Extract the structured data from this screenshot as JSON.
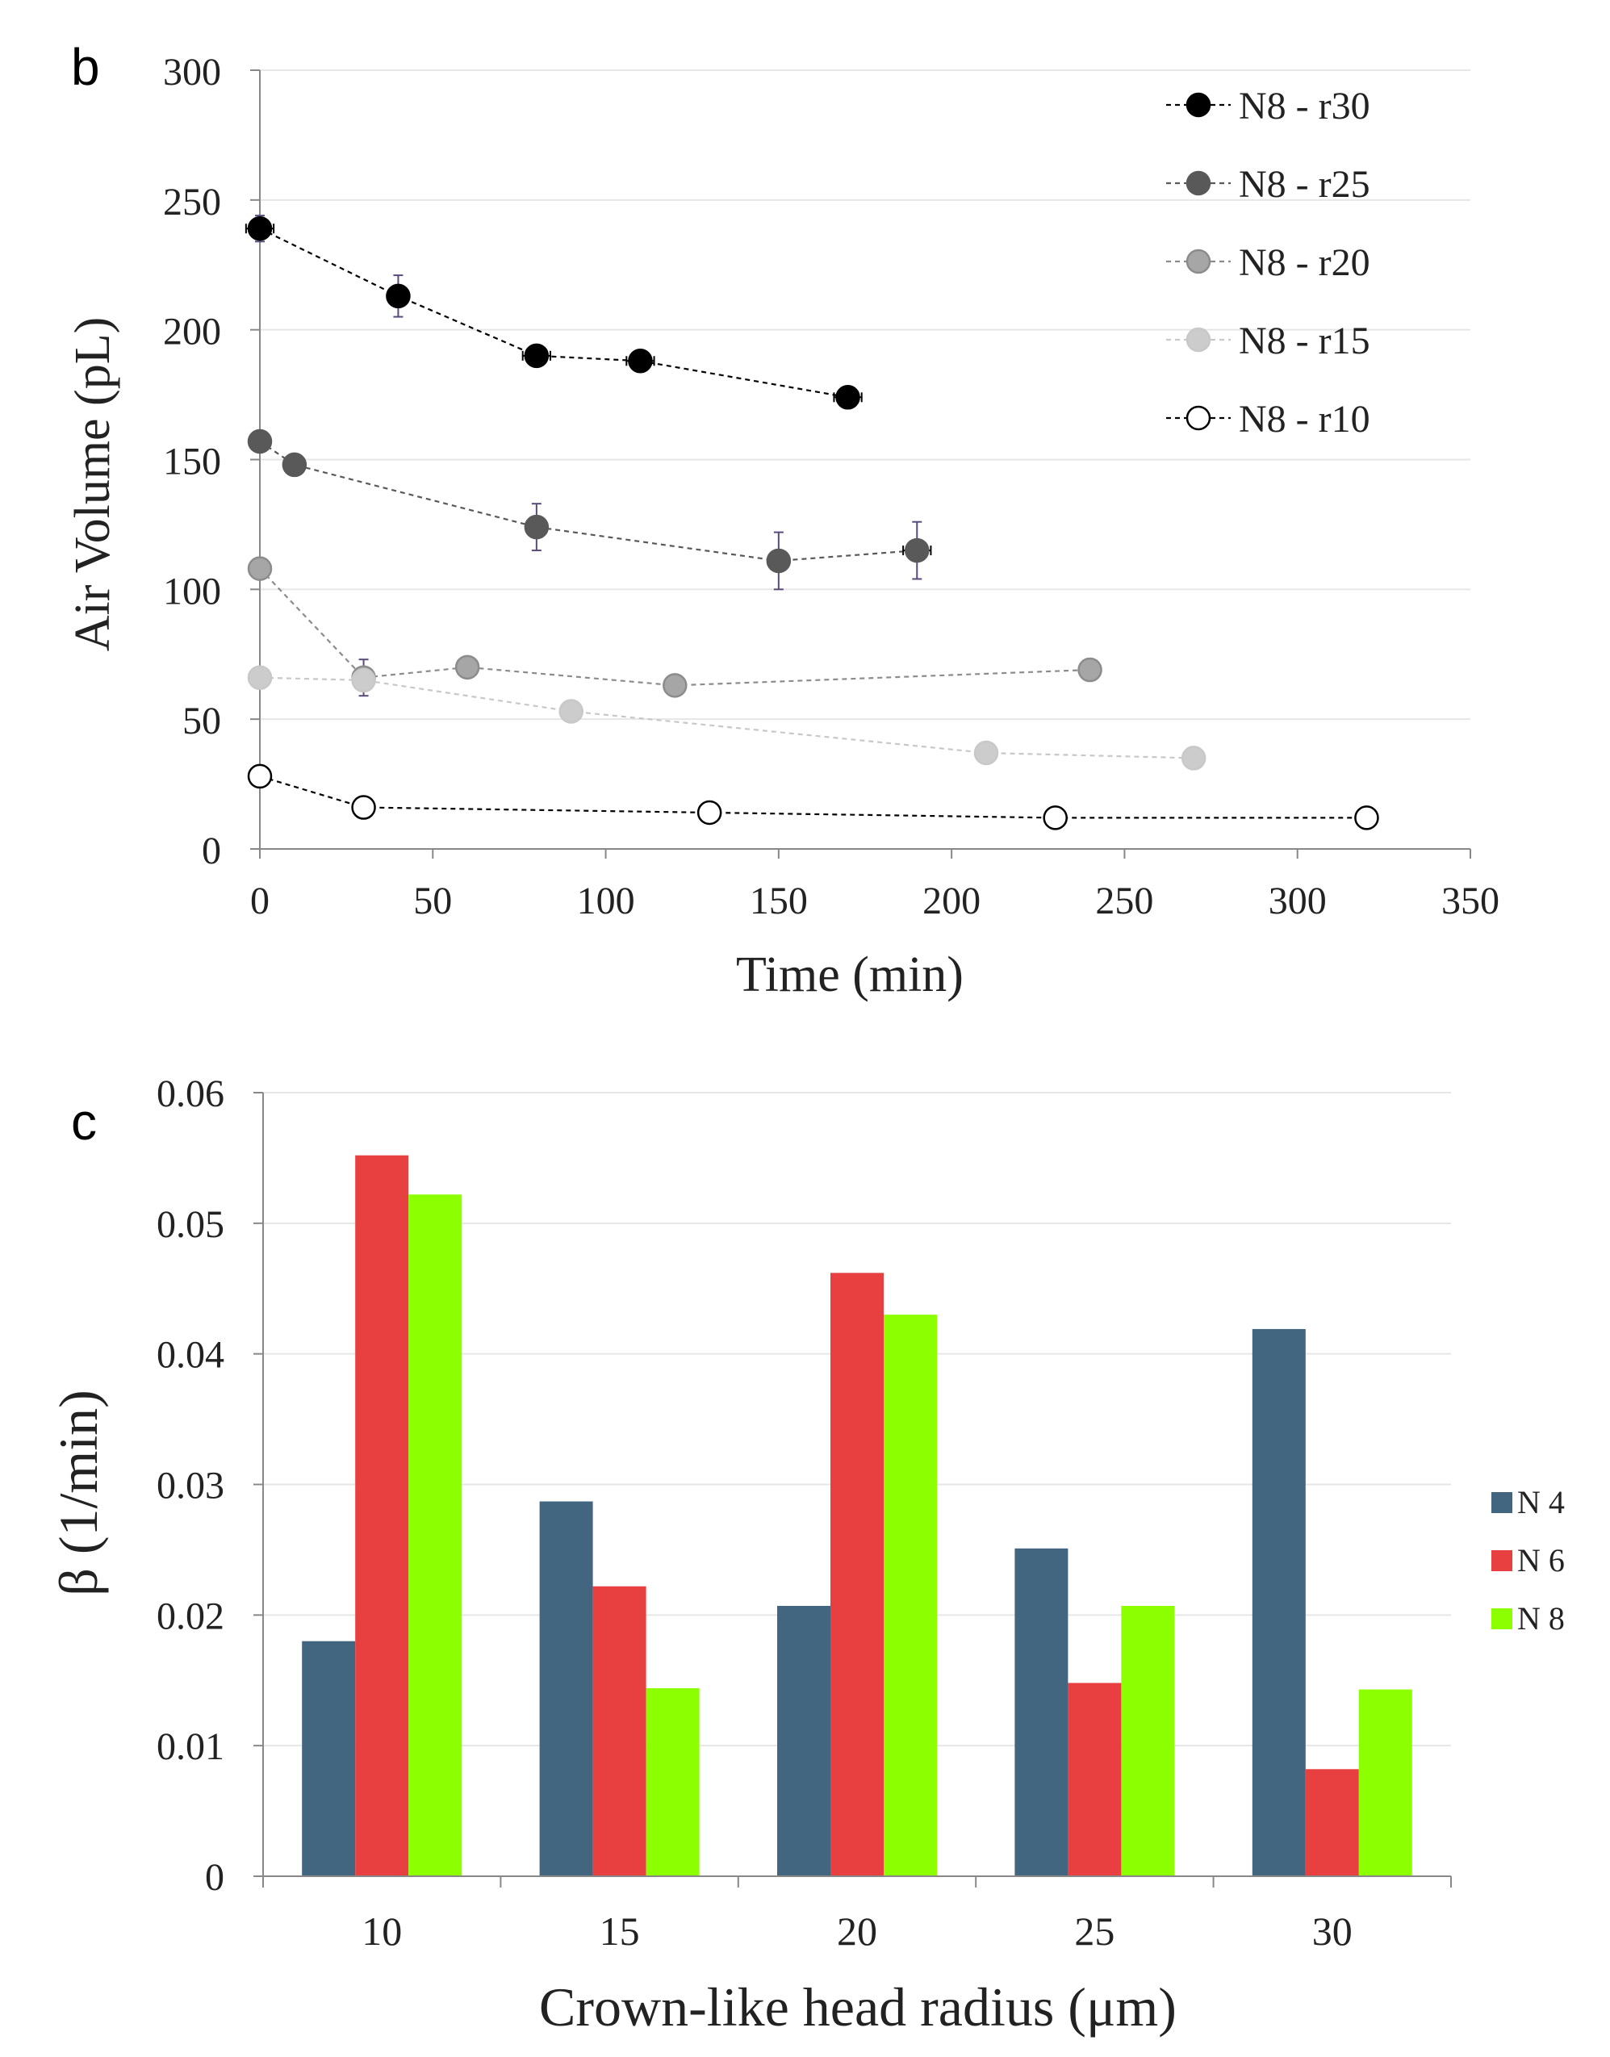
{
  "chart_data": [
    {
      "type": "scatter",
      "panel_label": "b",
      "title": "",
      "xlabel": "Time (min)",
      "ylabel": "Air Volume (pL)",
      "xlim": [
        0,
        350
      ],
      "ylim": [
        0,
        300
      ],
      "xticks": [
        "0",
        "50",
        "100",
        "150",
        "200",
        "250",
        "300",
        "350"
      ],
      "yticks": [
        "0",
        "50",
        "100",
        "150",
        "200",
        "250",
        "300"
      ],
      "grid": "horizontal",
      "legend_position": "top-right",
      "series": [
        {
          "name": "N8 - r30",
          "fill": "#000000",
          "stroke": "#000000",
          "line": "#000000",
          "x": [
            0,
            40,
            80,
            110,
            170
          ],
          "y": [
            239,
            213,
            190,
            188,
            174
          ],
          "yerr": [
            5,
            8,
            2,
            2,
            4
          ],
          "xerr": [
            4,
            3,
            4,
            4,
            4
          ]
        },
        {
          "name": "N8 - r25",
          "fill": "#595959",
          "stroke": "#595959",
          "line": "#595959",
          "x": [
            0,
            10,
            80,
            150,
            190
          ],
          "y": [
            157,
            148,
            124,
            111,
            115
          ],
          "yerr": [
            3,
            3,
            9,
            11,
            11
          ],
          "xerr": [
            3,
            3,
            3,
            3,
            4
          ]
        },
        {
          "name": "N8 - r20",
          "fill": "#a6a6a6",
          "stroke": "#8c8c8c",
          "line": "#8c8c8c",
          "x": [
            0,
            30,
            60,
            120,
            240
          ],
          "y": [
            108,
            66,
            70,
            63,
            69
          ],
          "yerr": [
            2,
            7,
            2,
            2,
            2
          ],
          "xerr": [
            0,
            0,
            0,
            0,
            0
          ]
        },
        {
          "name": "N8 - r15",
          "fill": "#cccccc",
          "stroke": "#c8c8c8",
          "line": "#c8c8c8",
          "x": [
            0,
            30,
            90,
            210,
            270
          ],
          "y": [
            66,
            65,
            53,
            37,
            35
          ],
          "yerr": [
            0,
            0,
            0,
            0,
            0
          ],
          "xerr": [
            0,
            0,
            0,
            0,
            0
          ]
        },
        {
          "name": "N8 - r10",
          "fill": "#ffffff",
          "stroke": "#000000",
          "line": "#000000",
          "x": [
            0,
            30,
            130,
            230,
            320
          ],
          "y": [
            28,
            16,
            14,
            12,
            12
          ],
          "yerr": [
            0,
            0,
            0,
            0,
            0
          ],
          "xerr": [
            0,
            0,
            0,
            0,
            0
          ]
        }
      ]
    },
    {
      "type": "bar",
      "panel_label": "c",
      "title": "",
      "xlabel": "Crown-like head radius (μm)",
      "ylabel": "β (1/min)",
      "categories": [
        "10",
        "15",
        "20",
        "25",
        "30"
      ],
      "ylim": [
        0,
        0.06
      ],
      "yticks": [
        "0",
        "0.01",
        "0.02",
        "0.03",
        "0.04",
        "0.05",
        "0.06"
      ],
      "grid": "horizontal",
      "legend_position": "right",
      "series": [
        {
          "name": "N 4",
          "color": "#426580",
          "values": [
            0.018,
            0.0287,
            0.0207,
            0.0251,
            0.0419
          ]
        },
        {
          "name": "N 6",
          "color": "#e84040",
          "values": [
            0.0552,
            0.0222,
            0.0462,
            0.0148,
            0.0082
          ]
        },
        {
          "name": "N 8",
          "color": "#8cff00",
          "values": [
            0.0522,
            0.0144,
            0.043,
            0.0207,
            0.0143
          ]
        }
      ]
    }
  ]
}
